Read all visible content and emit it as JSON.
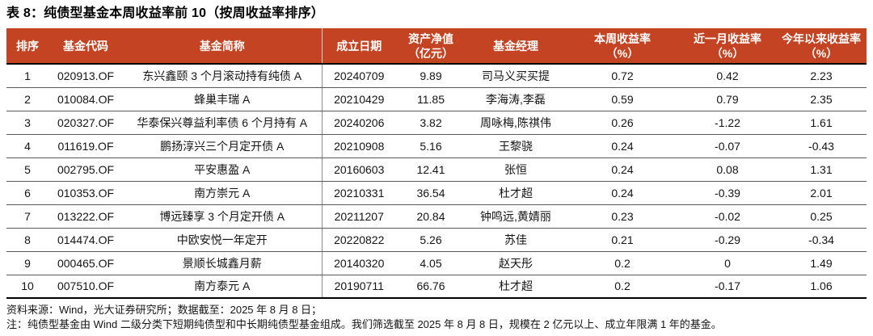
{
  "table_title": "表 8：纯债型基金本周收益率前 10（按周收益率排序）",
  "theme": {
    "header_bg": "#c44322",
    "header_text": "#ffffff",
    "thick_border": "#000000",
    "row_line": "#595959"
  },
  "columns": [
    {
      "label": "排序",
      "sub": ""
    },
    {
      "label": "基金代码",
      "sub": ""
    },
    {
      "label": "基金简称",
      "sub": ""
    },
    {
      "label": "成立日期",
      "sub": ""
    },
    {
      "label": "资产净值",
      "sub": "（亿元）"
    },
    {
      "label": "基金经理",
      "sub": ""
    },
    {
      "label": "本周收益率",
      "sub": "（%）"
    },
    {
      "label": "近一月收益率",
      "sub": "（%）"
    },
    {
      "label": "今年以来收益率",
      "sub": "（%）"
    }
  ],
  "rows": [
    [
      "1",
      "020913.OF",
      "东兴鑫颐 3 个月滚动持有纯债 A",
      "20240709",
      "9.89",
      "司马义买买提",
      "0.72",
      "0.42",
      "2.23"
    ],
    [
      "2",
      "010084.OF",
      "蜂巢丰瑞 A",
      "20210429",
      "11.85",
      "李海涛,李磊",
      "0.59",
      "0.79",
      "2.35"
    ],
    [
      "3",
      "020327.OF",
      "华泰保兴尊益利率债 6 个月持有 A",
      "20240206",
      "3.82",
      "周咏梅,陈祺伟",
      "0.26",
      "-1.22",
      "1.61"
    ],
    [
      "4",
      "011619.OF",
      "鹏扬淳兴三个月定开债 A",
      "20210908",
      "5.16",
      "王黎骁",
      "0.24",
      "-0.07",
      "-0.43"
    ],
    [
      "5",
      "002795.OF",
      "平安惠盈 A",
      "20160603",
      "12.41",
      "张恒",
      "0.24",
      "0.08",
      "1.31"
    ],
    [
      "6",
      "010353.OF",
      "南方崇元 A",
      "20210331",
      "36.54",
      "杜才超",
      "0.24",
      "-0.39",
      "2.01"
    ],
    [
      "7",
      "013222.OF",
      "博远臻享 3 个月定开债 A",
      "20211207",
      "20.84",
      "钟鸣远,黄婧丽",
      "0.23",
      "-0.02",
      "0.25"
    ],
    [
      "8",
      "014474.OF",
      "中欧安悦一年定开",
      "20220822",
      "5.26",
      "苏佳",
      "0.21",
      "-0.29",
      "-0.34"
    ],
    [
      "9",
      "000465.OF",
      "景顺长城鑫月薪",
      "20140320",
      "4.05",
      "赵天彤",
      "0.2",
      "0",
      "1.49"
    ],
    [
      "10",
      "007510.OF",
      "南方泰元 A",
      "20190711",
      "66.76",
      "杜才超",
      "0.2",
      "-0.17",
      "1.06"
    ]
  ],
  "footnotes": [
    "资料来源：Wind，光大证券研究所；数据截至：2025 年 8 月 8 日；",
    "注：纯债型基金由 Wind 二级分类下短期纯债型和中长期纯债型基金组成。我们筛选截至 2025 年 8 月 8 日，规模在 2 亿元以上、成立年限满 1 年的基金。"
  ]
}
